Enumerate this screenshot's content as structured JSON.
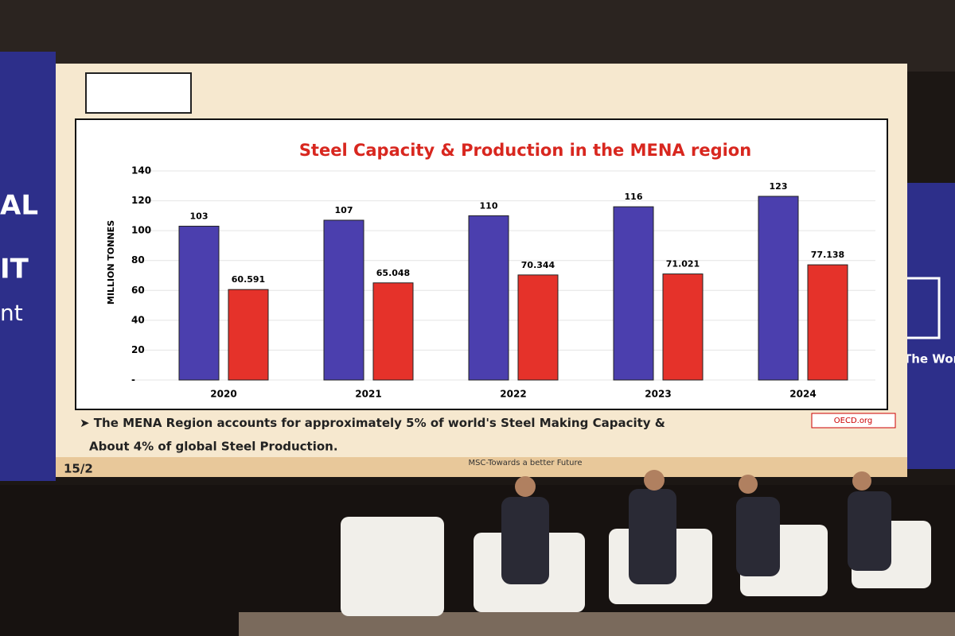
{
  "chart_data": {
    "type": "bar",
    "title": "Steel Capacity & Production in the MENA region",
    "y_label": "MILLION TONNES",
    "categories": [
      "2020",
      "2021",
      "2022",
      "2023",
      "2024"
    ],
    "series": [
      {
        "color": "#4b3fae",
        "values": [
          103,
          107,
          110,
          116,
          123
        ]
      },
      {
        "color": "#e5322a",
        "values": [
          60.591,
          65.048,
          70.344,
          71.021,
          77.138
        ]
      }
    ],
    "ylim": [
      0,
      140
    ],
    "yticks": [
      {
        "value": 0,
        "label": "-"
      },
      20,
      40,
      60,
      80,
      100,
      120,
      140
    ],
    "grid": true
  },
  "slide": {
    "note_line1": "The MENA Region accounts for approximately 5% of world's Steel Making Capacity &",
    "note_line2": "About 4% of global Steel Production.",
    "source": "OECD.org",
    "page": "15/2",
    "footer": "MSC-Towards a better Future"
  },
  "banner": {
    "left_lines": [
      "AL",
      "IT",
      "nt"
    ],
    "right_tagline": "The World's"
  }
}
